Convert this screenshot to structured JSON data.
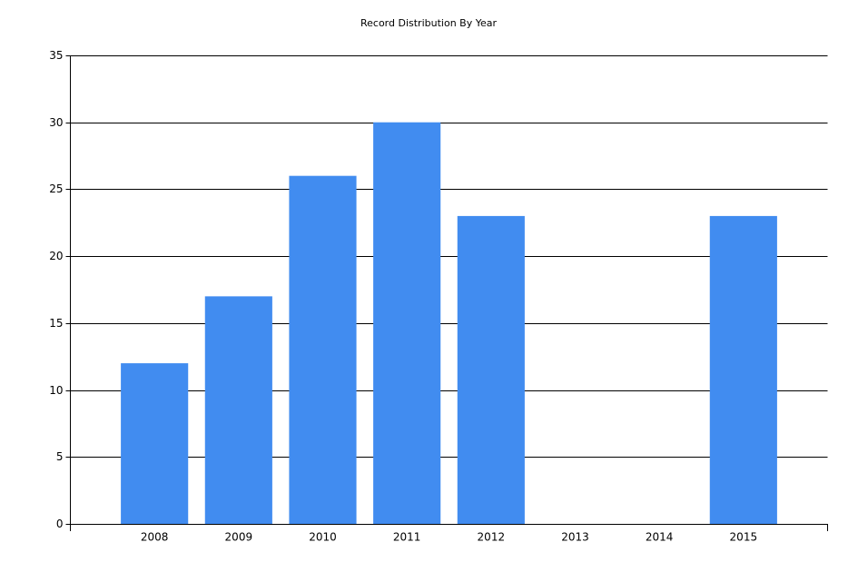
{
  "chart_data": {
    "type": "bar",
    "title": "Record Distribution By Year",
    "categories": [
      "2008",
      "2009",
      "2010",
      "2011",
      "2012",
      "2013",
      "2014",
      "2015"
    ],
    "values": [
      12,
      17,
      26,
      30,
      23,
      0,
      0,
      23
    ],
    "color": "#418cf0",
    "ylim": [
      0,
      35
    ],
    "yticks": [
      0,
      5,
      10,
      15,
      20,
      25,
      30,
      35
    ],
    "grid": true
  }
}
